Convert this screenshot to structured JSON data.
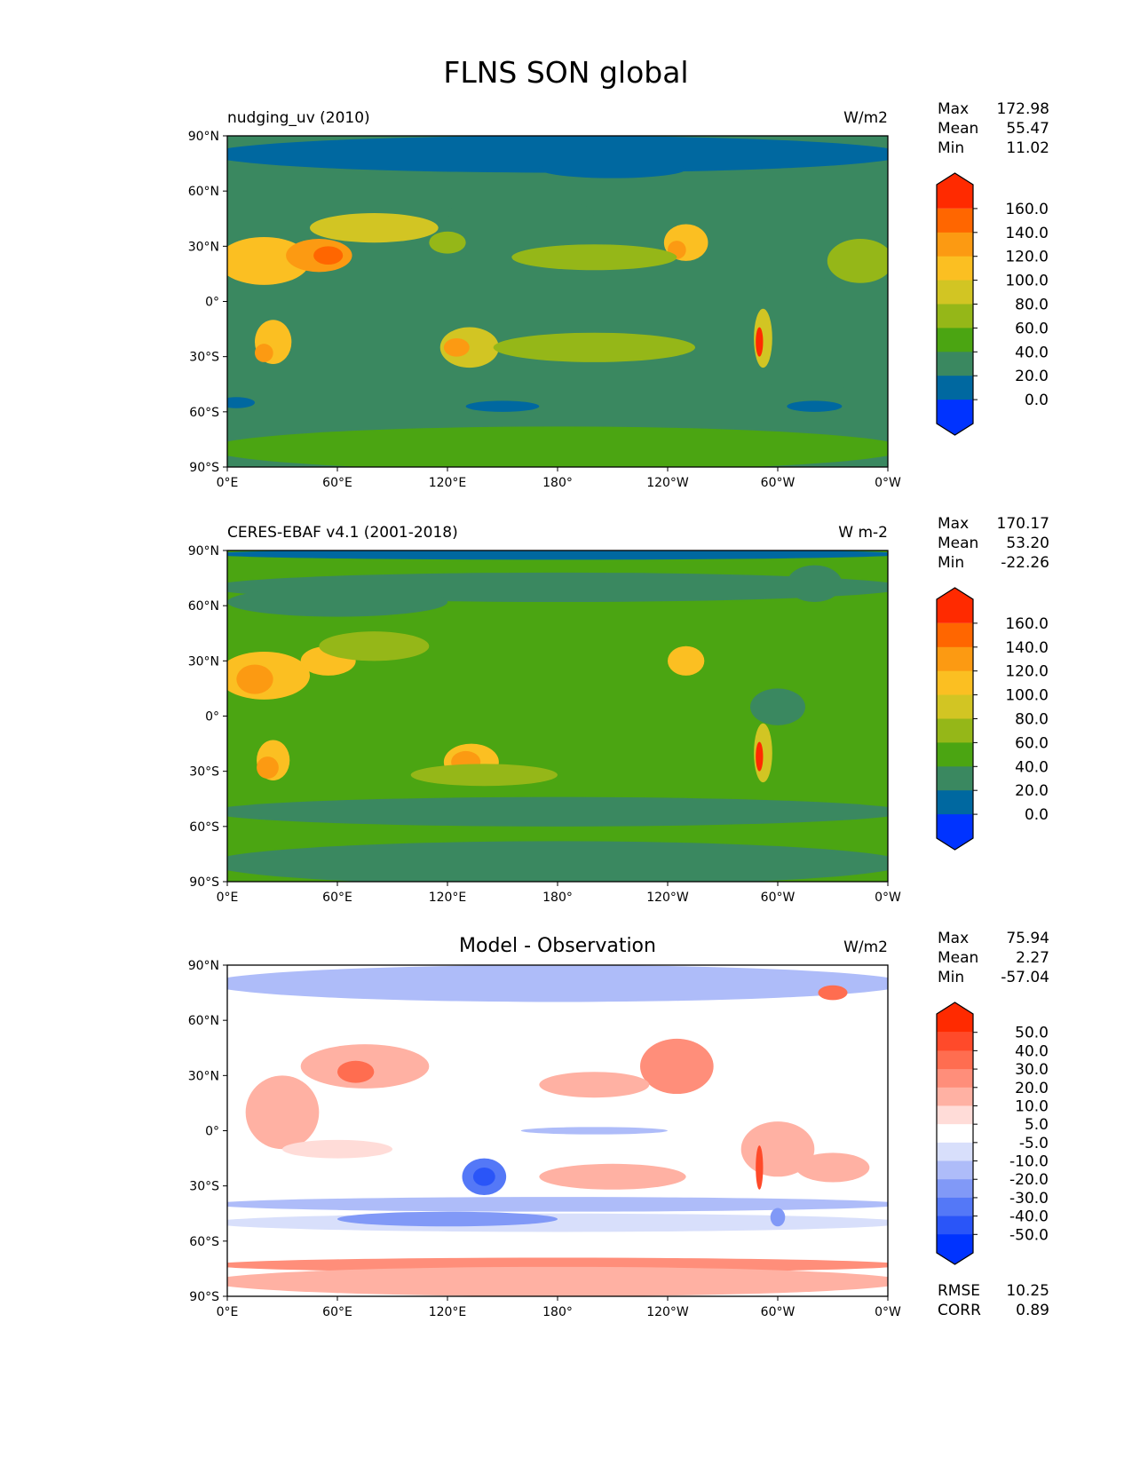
{
  "title": "FLNS SON global",
  "chart_data": {
    "type": "heatmap",
    "title": "FLNS SON global",
    "lat_ticks": [
      "90°N",
      "60°N",
      "30°N",
      "0°",
      "30°S",
      "60°S",
      "90°S"
    ],
    "lon_ticks": [
      "0°E",
      "60°E",
      "120°E",
      "180°",
      "120°W",
      "60°W",
      "0°W"
    ],
    "panels": [
      {
        "left_title": "nudging_uv (2010)",
        "center_title": "",
        "units": "W/m2",
        "stats": [
          {
            "k": "Max",
            "v": "172.98"
          },
          {
            "k": "Mean",
            "v": "55.47"
          },
          {
            "k": "Min",
            "v": "11.02"
          }
        ],
        "levels": [
          "160.0",
          "140.0",
          "120.0",
          "100.0",
          "80.0",
          "60.0",
          "40.0",
          "20.0",
          "0.0"
        ],
        "colors": [
          "#ff2a00",
          "#ff6600",
          "#fc9a12",
          "#fbbf22",
          "#d2c523",
          "#95b718",
          "#4ba512",
          "#3a8860",
          "#0068a0",
          "#0033ff"
        ]
      },
      {
        "left_title": "CERES-EBAF v4.1 (2001-2018)",
        "center_title": "",
        "units": "W m-2",
        "stats": [
          {
            "k": "Max",
            "v": "170.17"
          },
          {
            "k": "Mean",
            "v": "53.20"
          },
          {
            "k": "Min",
            "v": "-22.26"
          }
        ],
        "levels": [
          "160.0",
          "140.0",
          "120.0",
          "100.0",
          "80.0",
          "60.0",
          "40.0",
          "20.0",
          "0.0"
        ],
        "colors": [
          "#ff2a00",
          "#ff6600",
          "#fc9a12",
          "#fbbf22",
          "#d2c523",
          "#95b718",
          "#4ba512",
          "#3a8860",
          "#0068a0",
          "#0033ff"
        ]
      },
      {
        "left_title": "",
        "center_title": "Model - Observation",
        "units": "W/m2",
        "stats": [
          {
            "k": "Max",
            "v": "75.94"
          },
          {
            "k": "Mean",
            "v": "2.27"
          },
          {
            "k": "Min",
            "v": "-57.04"
          }
        ],
        "levels": [
          "50.0",
          "40.0",
          "30.0",
          "20.0",
          "10.0",
          "5.0",
          "-5.0",
          "-10.0",
          "-20.0",
          "-30.0",
          "-40.0",
          "-50.0"
        ],
        "colors": [
          "#ff2a00",
          "#ff4a2a",
          "#ff6d50",
          "#ff8e7a",
          "#ffb1a3",
          "#ffdcd8",
          "#ffffff",
          "#d8dffb",
          "#aebcf9",
          "#8199f7",
          "#5478f7",
          "#2a55f8",
          "#0033ff"
        ],
        "extra_stats": [
          {
            "k": "RMSE",
            "v": "10.25"
          },
          {
            "k": "CORR",
            "v": "0.89"
          }
        ]
      }
    ]
  }
}
